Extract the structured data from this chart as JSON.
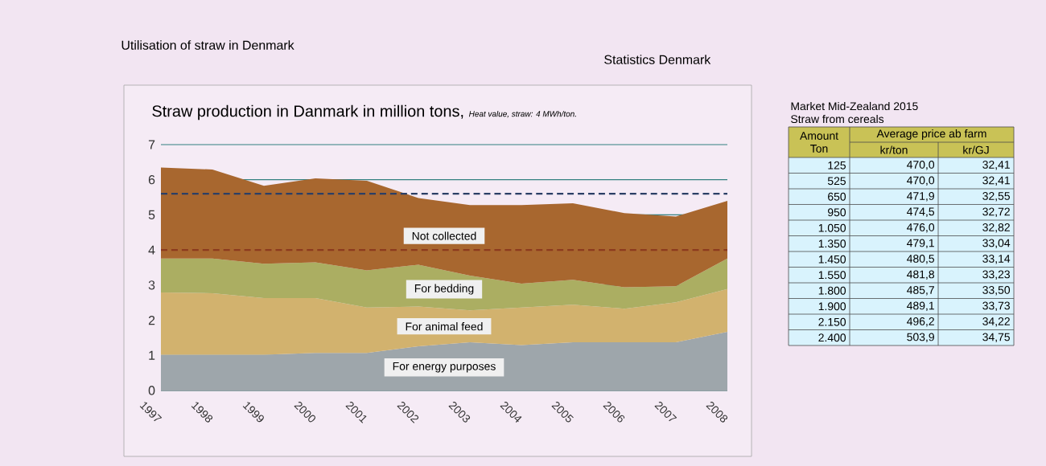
{
  "chart_data": [
    {
      "type": "area",
      "stacked": true,
      "title": "Straw production in Danmark in million tons,",
      "subtitle": "Heat value, straw: 4 MWh/ton.",
      "annotations": [
        "Utilisation of straw in Denmark",
        "Statistics Denmark"
      ],
      "categories": [
        "1997",
        "1998",
        "1999",
        "2000",
        "2001",
        "2002",
        "2003",
        "2004",
        "2005",
        "2006",
        "2007",
        "2008"
      ],
      "ylim": [
        0,
        7
      ],
      "yticks": [
        0,
        1,
        2,
        3,
        4,
        5,
        6,
        7
      ],
      "grid": "y",
      "legend": false,
      "series": [
        {
          "name": "For energy purposes",
          "color": "#9ea6ab",
          "values": [
            1.02,
            1.02,
            1.02,
            1.07,
            1.07,
            1.26,
            1.37,
            1.29,
            1.37,
            1.37,
            1.37,
            1.67
          ]
        },
        {
          "name": "For animal feed",
          "color": "#d2b26e",
          "values": [
            1.77,
            1.75,
            1.61,
            1.56,
            1.29,
            1.13,
            0.91,
            1.07,
            1.07,
            0.96,
            1.14,
            1.22
          ]
        },
        {
          "name": "For bedding",
          "color": "#abae62",
          "values": [
            0.97,
            0.99,
            0.98,
            1.02,
            1.06,
            1.19,
            0.99,
            0.68,
            0.71,
            0.61,
            0.46,
            0.87
          ]
        },
        {
          "name": "Not collected",
          "color": "#a8672f",
          "values": [
            2.59,
            2.53,
            2.22,
            2.39,
            2.55,
            1.9,
            2.01,
            2.24,
            2.18,
            2.11,
            1.98,
            1.64
          ]
        }
      ],
      "ref_lines": [
        {
          "axis": "y",
          "value": 5.6,
          "color": "#2b3f66",
          "line_style": "dashed"
        },
        {
          "axis": "y",
          "value": 4.0,
          "color": "#8c3a1e",
          "line_style": "dashed"
        }
      ]
    },
    {
      "type": "other",
      "title": "Market Mid-Zealand 2015",
      "subtitle": "Straw from cereals",
      "xlabel": "Amount Ton",
      "legend_title": "Average price ab farm",
      "categories": [
        "125",
        "525",
        "650",
        "950",
        "1.050",
        "1.350",
        "1.450",
        "1.550",
        "1.800",
        "1.900",
        "2.150",
        "2.400"
      ],
      "series": [
        {
          "name": "kr/ton",
          "values": [
            470.0,
            470.0,
            471.9,
            474.5,
            476.0,
            479.1,
            480.5,
            481.8,
            485.7,
            489.1,
            496.2,
            503.9
          ],
          "value_labels": [
            "470,0",
            "470,0",
            "471,9",
            "474,5",
            "476,0",
            "479,1",
            "480,5",
            "481,8",
            "485,7",
            "489,1",
            "496,2",
            "503,9"
          ]
        },
        {
          "name": "kr/GJ",
          "values": [
            32.41,
            32.41,
            32.55,
            32.72,
            32.82,
            33.04,
            33.14,
            33.23,
            33.5,
            33.73,
            34.22,
            34.75
          ],
          "value_labels": [
            "32,41",
            "32,41",
            "32,55",
            "32,72",
            "32,82",
            "33,04",
            "33,14",
            "33,23",
            "33,50",
            "33,73",
            "34,22",
            "34,75"
          ]
        }
      ]
    }
  ]
}
